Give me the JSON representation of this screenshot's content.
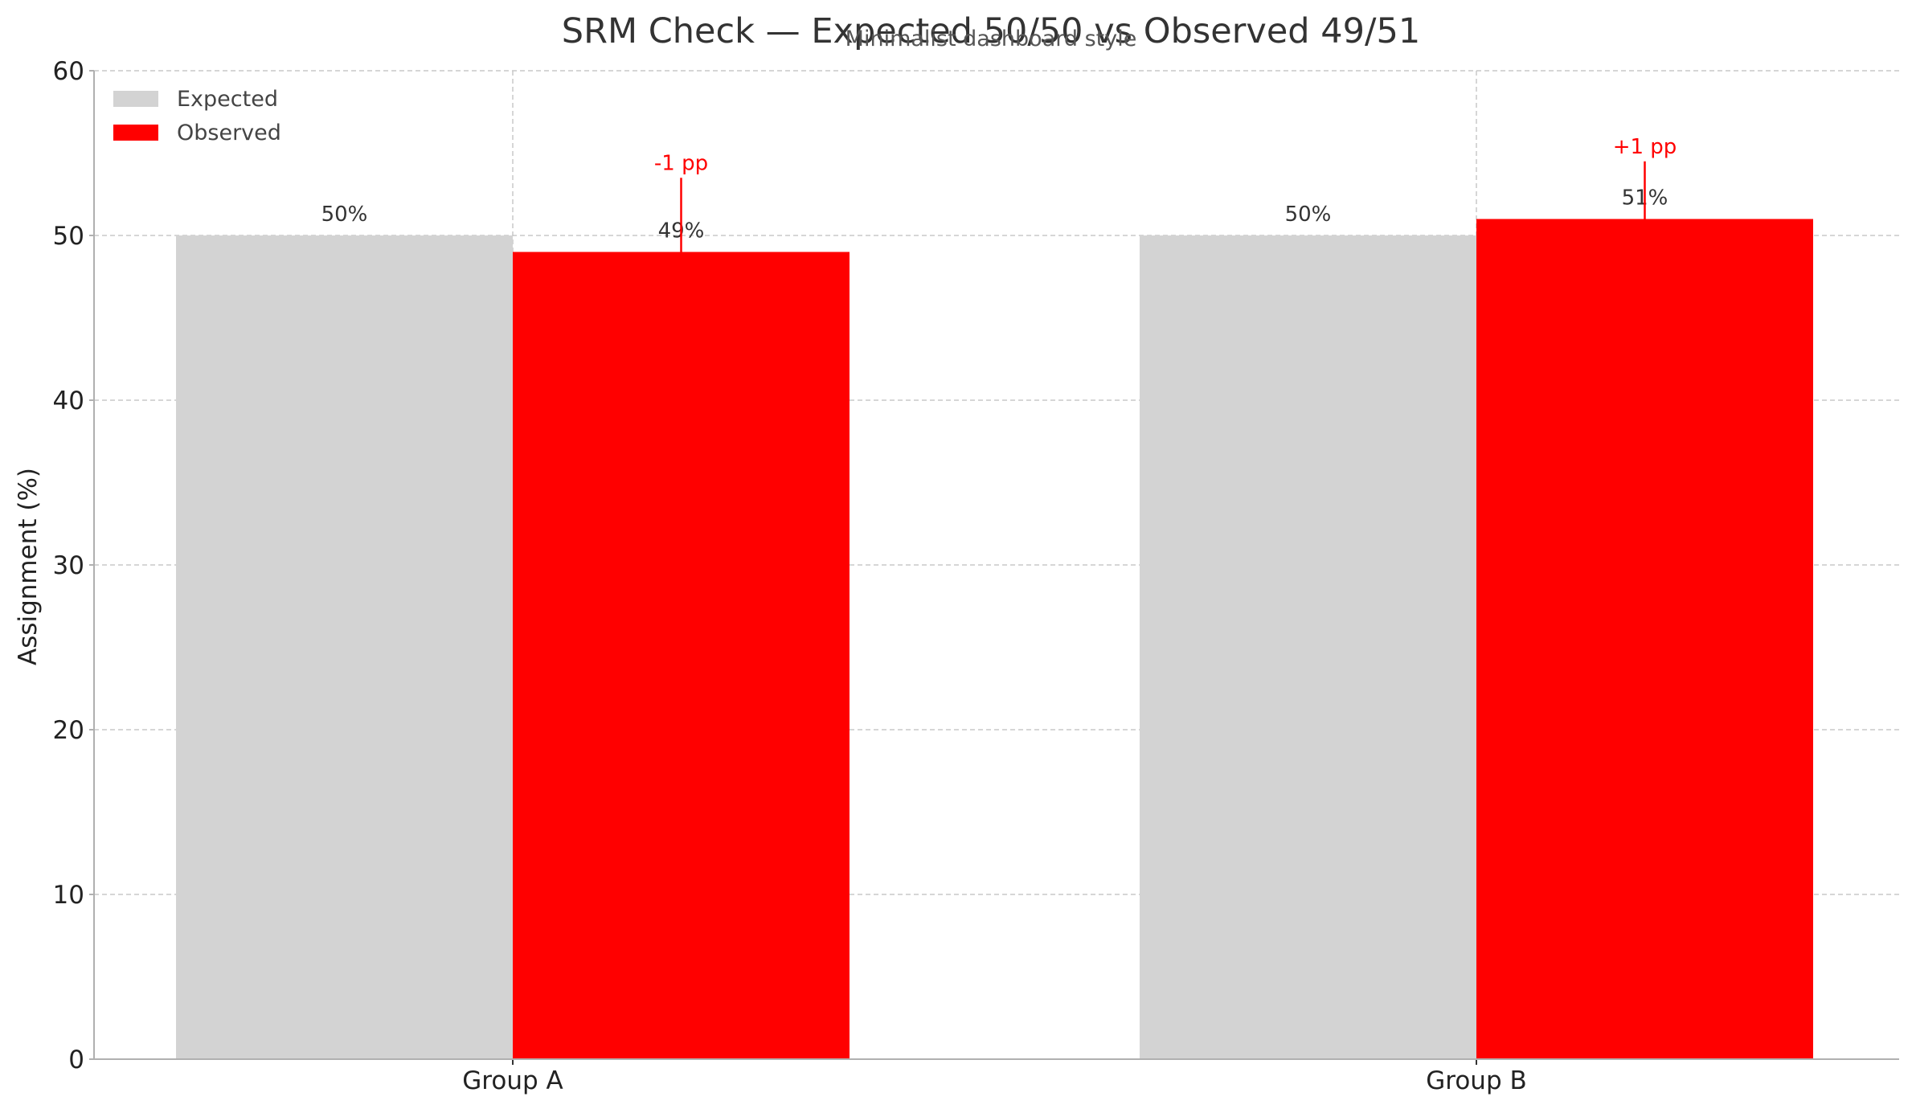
{
  "chart_data": {
    "type": "bar",
    "title": "SRM Check — Expected 50/50 vs Observed 49/51",
    "subtitle": "Minimalist dashboard style",
    "xlabel": "",
    "ylabel": "Assignment (%)",
    "categories": [
      "Group A",
      "Group B"
    ],
    "series": [
      {
        "name": "Expected",
        "values": [
          50,
          50
        ],
        "labels": [
          "50%",
          "50%"
        ],
        "color": "#d3d3d3"
      },
      {
        "name": "Observed",
        "values": [
          49,
          51
        ],
        "labels": [
          "49%",
          "51%"
        ],
        "color": "#ff0000"
      }
    ],
    "annotations": [
      {
        "category": "Group A",
        "text": "-1 pp",
        "color": "#ff0000"
      },
      {
        "category": "Group B",
        "text": "+1 pp",
        "color": "#ff0000"
      }
    ],
    "ylim": [
      0,
      60
    ],
    "yticks": [
      0,
      10,
      20,
      30,
      40,
      50,
      60
    ],
    "grid": true,
    "legend_position": "top-left"
  }
}
